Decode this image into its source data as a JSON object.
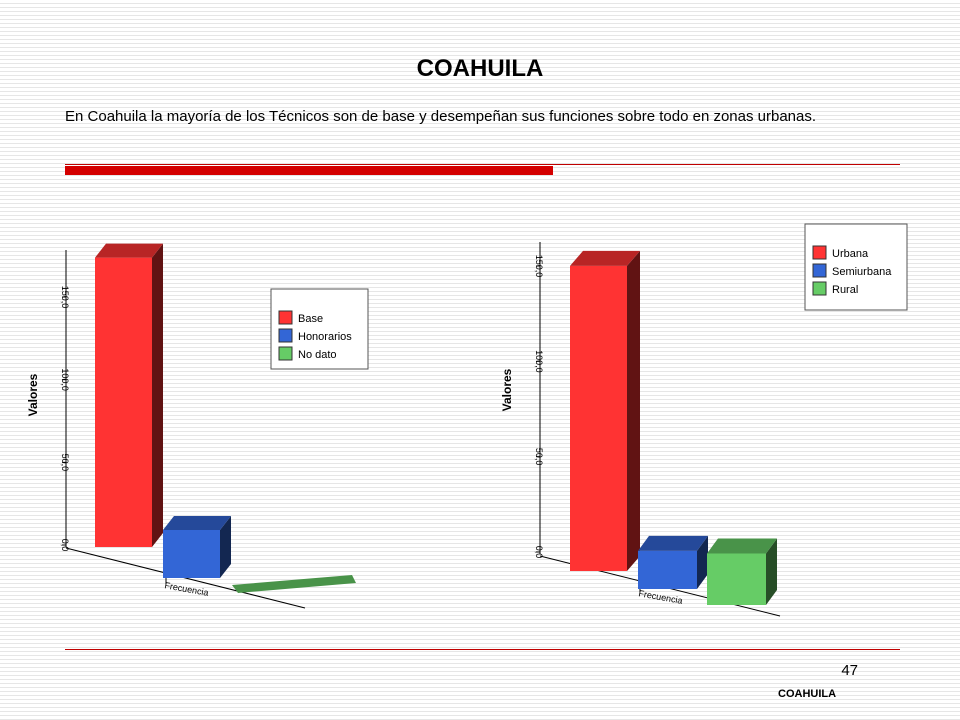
{
  "slide": {
    "title": "COAHUILA",
    "description": "En Coahuila la mayoría de los Técnicos son de base y desempeñan sus funciones sobre todo en zonas urbanas.",
    "page_number": "47",
    "footer": "COAHUILA"
  },
  "colors": {
    "red": "#ff3333",
    "blue": "#3366d6",
    "green": "#66cc66",
    "accent": "#d40000"
  },
  "chart_data": [
    {
      "type": "bar",
      "ylabel": "Valores",
      "xlabel": "Frecuencia",
      "ylim": [
        0,
        175
      ],
      "yticks": [
        "0,0",
        "50,0",
        "100,0",
        "150,0"
      ],
      "series": [
        {
          "name": "Base",
          "values": [
            175
          ]
        },
        {
          "name": "Honorarios",
          "values": [
            29
          ]
        },
        {
          "name": "No dato",
          "values": [
            1
          ]
        }
      ],
      "legend": "right"
    },
    {
      "type": "bar",
      "ylabel": "Valores",
      "xlabel": "Frecuencia",
      "ylim": [
        0,
        160
      ],
      "yticks": [
        "0,0",
        "50,0",
        "100,0",
        "150,0"
      ],
      "series": [
        {
          "name": "Urbana",
          "values": [
            160
          ]
        },
        {
          "name": "Semiurbana",
          "values": [
            20
          ]
        },
        {
          "name": "Rural",
          "values": [
            27
          ]
        }
      ],
      "legend": "top-right"
    }
  ]
}
